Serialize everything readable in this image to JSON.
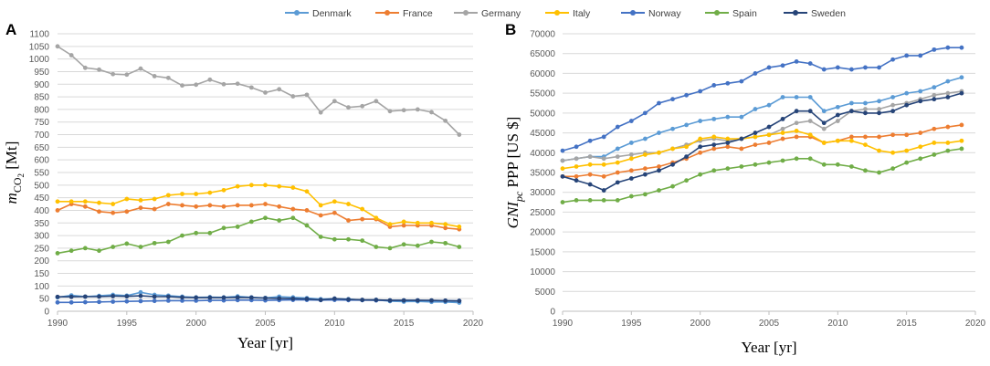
{
  "legend": [
    {
      "name": "Denmark",
      "color": "#5b9bd5"
    },
    {
      "name": "France",
      "color": "#ed7d31"
    },
    {
      "name": "Germany",
      "color": "#a5a5a5"
    },
    {
      "name": "Italy",
      "color": "#ffc000"
    },
    {
      "name": "Norway",
      "color": "#4472c4"
    },
    {
      "name": "Spain",
      "color": "#70ad47"
    },
    {
      "name": "Sweden",
      "color": "#264478"
    }
  ],
  "chart_data": [
    {
      "type": "line",
      "panel_label": "A",
      "xlabel": "Year [yr]",
      "ylabel": "m_CO2 [Mt]",
      "ylabel_main": "m",
      "ylabel_sub": "CO",
      "ylabel_subsub": "2",
      "ylabel_unit": " [Mt]",
      "xlim": [
        1990,
        2020
      ],
      "ylim": [
        0,
        1100
      ],
      "xticks": [
        "1990",
        "1995",
        "2000",
        "2005",
        "2010",
        "2015",
        "2020"
      ],
      "yticks": [
        "0",
        "50",
        "100",
        "150",
        "200",
        "250",
        "300",
        "350",
        "400",
        "450",
        "500",
        "550",
        "600",
        "650",
        "700",
        "750",
        "800",
        "850",
        "900",
        "950",
        "1000",
        "1050",
        "1100"
      ],
      "x": [
        1990,
        1991,
        1992,
        1993,
        1994,
        1995,
        1996,
        1997,
        1998,
        1999,
        2000,
        2001,
        2002,
        2003,
        2004,
        2005,
        2006,
        2007,
        2008,
        2009,
        2010,
        2011,
        2012,
        2013,
        2014,
        2015,
        2016,
        2017,
        2018,
        2019
      ],
      "series": [
        {
          "name": "Denmark",
          "values": [
            55,
            63,
            58,
            61,
            65,
            62,
            75,
            65,
            62,
            58,
            55,
            56,
            55,
            59,
            55,
            53,
            58,
            55,
            52,
            48,
            50,
            48,
            44,
            45,
            40,
            38,
            39,
            37,
            37,
            34
          ]
        },
        {
          "name": "France",
          "values": [
            400,
            425,
            415,
            395,
            390,
            395,
            410,
            405,
            425,
            420,
            415,
            420,
            415,
            420,
            420,
            425,
            415,
            405,
            400,
            380,
            390,
            360,
            365,
            365,
            335,
            340,
            340,
            340,
            330,
            325
          ]
        },
        {
          "name": "Germany",
          "values": [
            1050,
            1015,
            965,
            958,
            940,
            938,
            962,
            932,
            925,
            895,
            898,
            918,
            900,
            902,
            887,
            867,
            880,
            852,
            858,
            788,
            833,
            808,
            813,
            833,
            793,
            797,
            800,
            789,
            755,
            700
          ]
        },
        {
          "name": "Italy",
          "values": [
            435,
            435,
            435,
            430,
            425,
            445,
            440,
            445,
            460,
            465,
            465,
            470,
            480,
            495,
            500,
            500,
            495,
            490,
            475,
            420,
            435,
            425,
            405,
            370,
            345,
            355,
            350,
            350,
            345,
            335
          ]
        },
        {
          "name": "Norway",
          "values": [
            35,
            35,
            36,
            37,
            38,
            39,
            40,
            41,
            42,
            42,
            42,
            43,
            43,
            44,
            44,
            43,
            44,
            45,
            45,
            44,
            45,
            44,
            44,
            43,
            43,
            43,
            43,
            42,
            42,
            41
          ]
        },
        {
          "name": "Spain",
          "values": [
            230,
            240,
            250,
            240,
            255,
            268,
            255,
            270,
            275,
            300,
            310,
            310,
            330,
            335,
            355,
            370,
            360,
            370,
            340,
            295,
            285,
            285,
            280,
            255,
            250,
            265,
            260,
            275,
            270,
            255
          ]
        },
        {
          "name": "Sweden",
          "values": [
            57,
            57,
            58,
            58,
            60,
            59,
            61,
            58,
            58,
            55,
            54,
            54,
            54,
            55,
            54,
            52,
            51,
            50,
            49,
            45,
            50,
            47,
            45,
            45,
            43,
            43,
            43,
            43,
            42,
            41
          ]
        }
      ]
    },
    {
      "type": "line",
      "panel_label": "B",
      "xlabel": "Year [yr]",
      "ylabel": "GNI_pc PPP [US $]",
      "ylabel_main": "GNI",
      "ylabel_sub": "pc",
      "ylabel_unit": "  PPP  [US $]",
      "xlim": [
        1990,
        2020
      ],
      "ylim": [
        0,
        70000
      ],
      "xticks": [
        "1990",
        "1995",
        "2000",
        "2005",
        "2010",
        "2015",
        "2020"
      ],
      "yticks": [
        "0",
        "5000",
        "10000",
        "15000",
        "20000",
        "25000",
        "30000",
        "35000",
        "40000",
        "45000",
        "50000",
        "55000",
        "60000",
        "65000",
        "70000"
      ],
      "x": [
        1990,
        1991,
        1992,
        1993,
        1994,
        1995,
        1996,
        1997,
        1998,
        1999,
        2000,
        2001,
        2002,
        2003,
        2004,
        2005,
        2006,
        2007,
        2008,
        2009,
        2010,
        2011,
        2012,
        2013,
        2014,
        2015,
        2016,
        2017,
        2018,
        2019
      ],
      "series": [
        {
          "name": "Denmark",
          "values": [
            38000,
            38500,
            39000,
            39000,
            41000,
            42500,
            43500,
            45000,
            46000,
            47000,
            48000,
            48500,
            49000,
            49000,
            51000,
            52000,
            54000,
            54000,
            54000,
            50500,
            51500,
            52500,
            52500,
            53000,
            54000,
            55000,
            55500,
            56500,
            58000,
            59000
          ]
        },
        {
          "name": "France",
          "values": [
            34000,
            34000,
            34500,
            34000,
            35000,
            35500,
            36000,
            36500,
            37500,
            38500,
            40000,
            41000,
            41500,
            41000,
            42000,
            42500,
            43500,
            44000,
            44000,
            42500,
            43000,
            44000,
            44000,
            44000,
            44500,
            44500,
            45000,
            46000,
            46500,
            47000
          ]
        },
        {
          "name": "Germany",
          "values": [
            38000,
            38500,
            39000,
            38500,
            39000,
            39500,
            40000,
            40000,
            41000,
            42000,
            43000,
            43500,
            43000,
            43500,
            44000,
            44500,
            46000,
            47500,
            48000,
            46000,
            48000,
            50500,
            51000,
            51000,
            52000,
            52500,
            53500,
            54500,
            55000,
            55500
          ]
        },
        {
          "name": "Italy",
          "values": [
            36000,
            36500,
            37000,
            37000,
            37500,
            38500,
            39500,
            40000,
            41000,
            41500,
            43500,
            44000,
            43500,
            43500,
            44000,
            44500,
            45000,
            45500,
            44500,
            42500,
            43000,
            43000,
            42000,
            40500,
            40000,
            40500,
            41500,
            42500,
            42500,
            43000
          ]
        },
        {
          "name": "Norway",
          "values": [
            40500,
            41500,
            43000,
            44000,
            46500,
            48000,
            50000,
            52500,
            53500,
            54500,
            55500,
            57000,
            57500,
            58000,
            60000,
            61500,
            62000,
            63000,
            62500,
            61000,
            61500,
            61000,
            61500,
            61500,
            63500,
            64500,
            64500,
            66000,
            66500,
            66500
          ]
        },
        {
          "name": "Spain",
          "values": [
            27500,
            28000,
            28000,
            28000,
            28000,
            29000,
            29500,
            30500,
            31500,
            33000,
            34500,
            35500,
            36000,
            36500,
            37000,
            37500,
            38000,
            38500,
            38500,
            37000,
            37000,
            36500,
            35500,
            35000,
            36000,
            37500,
            38500,
            39500,
            40500,
            41000
          ]
        },
        {
          "name": "Sweden",
          "values": [
            34000,
            33000,
            32000,
            30500,
            32500,
            33500,
            34500,
            35500,
            37000,
            39000,
            41500,
            42000,
            42500,
            43500,
            45000,
            46500,
            48500,
            50500,
            50500,
            47500,
            49500,
            50500,
            50000,
            50000,
            50500,
            52000,
            53000,
            53500,
            54000,
            55000
          ]
        }
      ]
    }
  ]
}
